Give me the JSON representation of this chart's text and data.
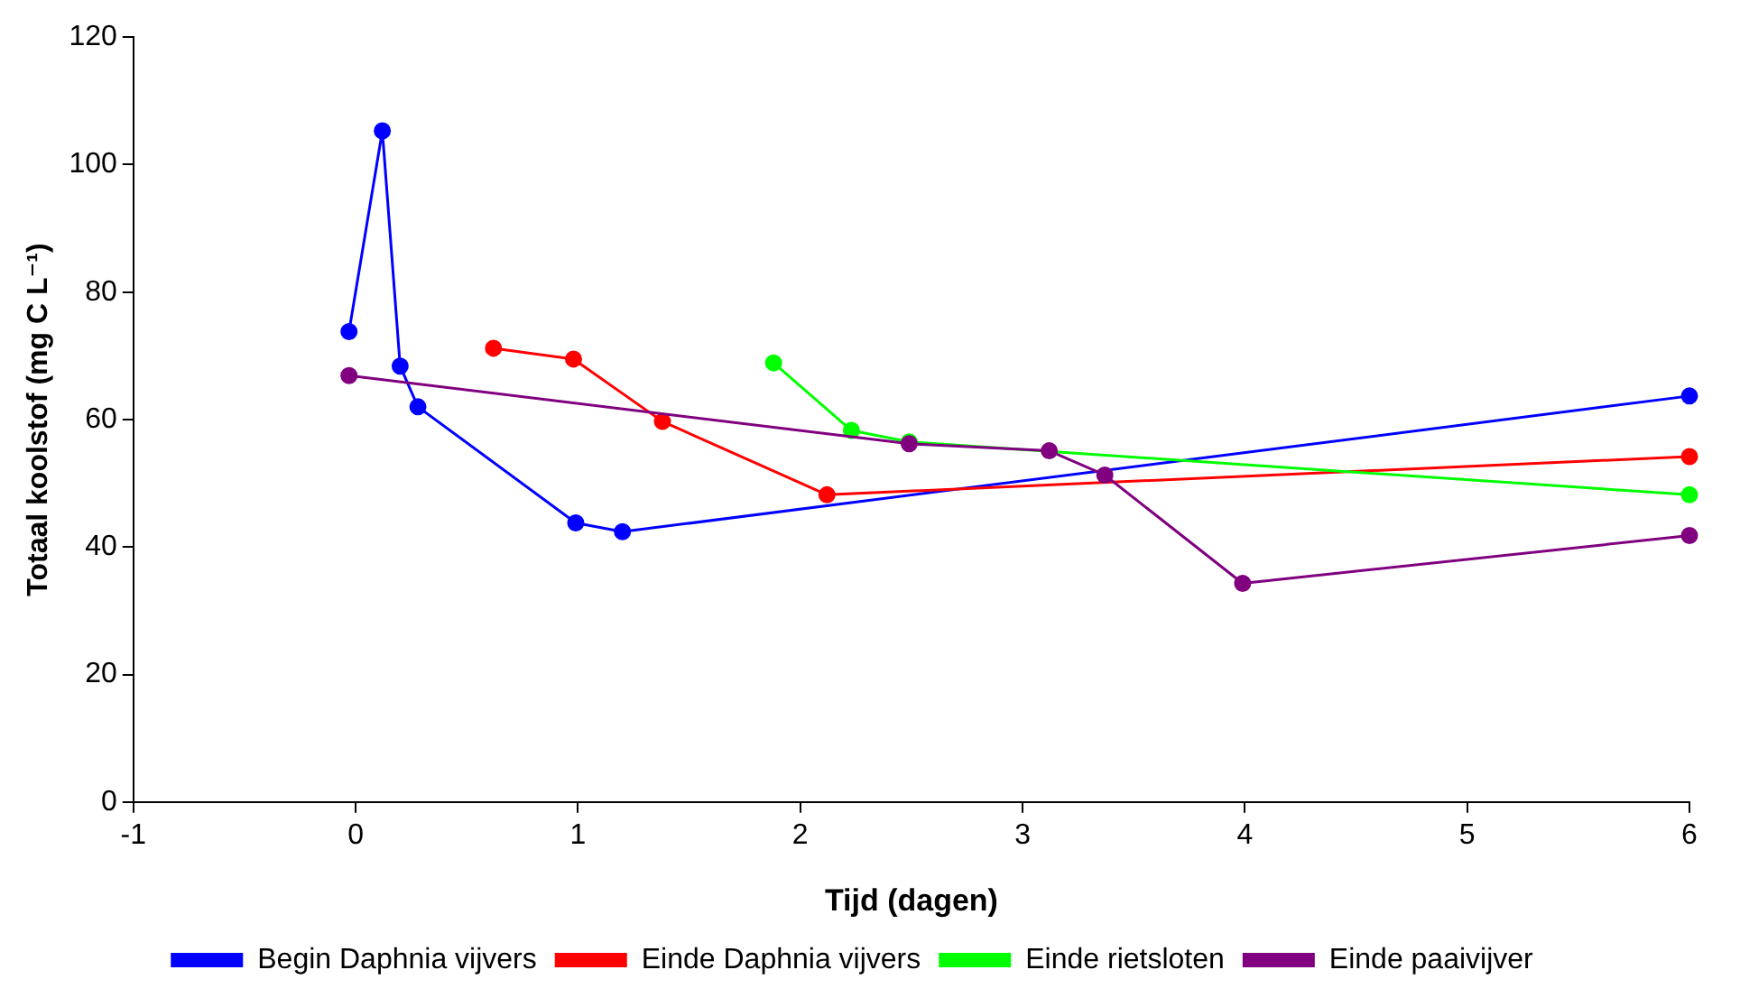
{
  "chart_data": {
    "type": "line",
    "xlabel": "Tijd (dagen)",
    "ylabel": "Totaal koolstof (mg C L⁻¹)",
    "xlim": [
      -1,
      6
    ],
    "xticks": [
      -1,
      0,
      1,
      2,
      3,
      4,
      5,
      6
    ],
    "ylim": [
      0,
      120
    ],
    "yticks": [
      0,
      20,
      40,
      60,
      80,
      100,
      120
    ],
    "grid": false,
    "legend": "bottom",
    "marker": "circle",
    "line_style": "solid",
    "series": [
      {
        "name": "Begin Daphnia vijvers",
        "color": "#0000ff",
        "x": [
          -0.03,
          0.12,
          0.2,
          0.28,
          0.99,
          1.2,
          6
        ],
        "values": [
          73.8,
          105.3,
          68.4,
          62,
          43.8,
          42.4,
          63.7
        ]
      },
      {
        "name": "Einde Daphnia vijvers",
        "color": "#ff0000",
        "x": [
          0.62,
          0.98,
          1.38,
          2.12,
          6
        ],
        "values": [
          71.2,
          69.5,
          59.7,
          48.2,
          54.2
        ]
      },
      {
        "name": "Einde rietsloten",
        "color": "#00ff00",
        "x": [
          1.88,
          2.23,
          2.49,
          6
        ],
        "values": [
          68.9,
          58.3,
          56.5,
          48.2
        ]
      },
      {
        "name": "Einde paaivijver",
        "color": "#800080",
        "x": [
          -0.03,
          2.49,
          3.12,
          3.37,
          3.99,
          6
        ],
        "values": [
          66.9,
          56.2,
          55.1,
          51.3,
          34.3,
          41.8
        ]
      }
    ]
  }
}
